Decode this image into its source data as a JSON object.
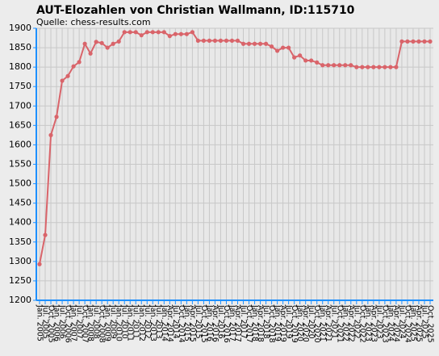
{
  "chart_data": {
    "type": "line",
    "title": "AUT-Elozahlen von Christian Wallmann, ID:115710",
    "subtitle": "Quelle: chess-results.com",
    "categories": [
      "Jan. 2005",
      "Jul. 2005",
      "Oct. 2005",
      "Jan. 2006",
      "Jul. 2006",
      "Oct. 2006",
      "Jan. 2007",
      "Jul. 2007",
      "Oct. 2007",
      "Jan. 2008",
      "Jul. 2008",
      "Oct. 2008",
      "Jan. 2009",
      "Jul. 2009",
      "Jan. 2010",
      "Jul. 2010",
      "Jan. 2011",
      "Jul. 2011",
      "Jan. 2012",
      "Jul. 2012",
      "Jan. 2013",
      "Jul. 2013",
      "Jan. 2014",
      "Apr. 2014",
      "Jul. 2014",
      "Oct. 2014",
      "Jan. 2015",
      "Apr. 2015",
      "Jul. 2015",
      "Oct. 2015",
      "Jan. 2016",
      "Apr. 2016",
      "Jul. 2016",
      "Oct. 2016",
      "Jan. 2017",
      "Apr. 2017",
      "Jul. 2017",
      "Oct. 2017",
      "Jan. 2018",
      "Apr. 2018",
      "Jul. 2018",
      "Oct. 2018",
      "Jan. 2019",
      "Apr. 2019",
      "Jul. 2019",
      "Oct. 2019",
      "Jan. 2020",
      "Apr. 2020",
      "Jul. 2020",
      "Oct. 2020",
      "Jan. 2021",
      "Apr. 2021",
      "Jul. 2021",
      "Oct. 2021",
      "Jan. 2022",
      "Apr. 2022",
      "Jul. 2022",
      "Oct. 2022",
      "Jan. 2023",
      "Apr. 2023",
      "Jul. 2023",
      "Oct. 2023",
      "Jan. 2024",
      "Apr. 2024",
      "Jul. 2024",
      "Oct. 2024",
      "Jan. 2025",
      "Apr. 2025",
      "Jul. 2025",
      "Oct. 2025"
    ],
    "series": [
      {
        "name": "Elo",
        "color": "#d9646a",
        "values": [
          1293,
          1368,
          1625,
          1672,
          1765,
          1777,
          1802,
          1813,
          1860,
          1835,
          1865,
          1862,
          1850,
          1860,
          1866,
          1890,
          1890,
          1890,
          1882,
          1890,
          1890,
          1890,
          1890,
          1880,
          1885,
          1885,
          1885,
          1890,
          1868,
          1868,
          1868,
          1868,
          1868,
          1868,
          1868,
          1868,
          1860,
          1860,
          1860,
          1860,
          1860,
          1853,
          1842,
          1850,
          1850,
          1825,
          1830,
          1817,
          1817,
          1812,
          1805,
          1805,
          1805,
          1805,
          1805,
          1805,
          1800,
          1800,
          1800,
          1800,
          1800,
          1800,
          1800,
          1800,
          1866,
          1866,
          1866,
          1866,
          1866,
          1866
        ]
      }
    ],
    "ylim": [
      1200,
      1900
    ],
    "yticks": [
      1200,
      1250,
      1300,
      1350,
      1400,
      1450,
      1500,
      1550,
      1600,
      1650,
      1700,
      1750,
      1800,
      1850,
      1900
    ],
    "grid": true
  }
}
